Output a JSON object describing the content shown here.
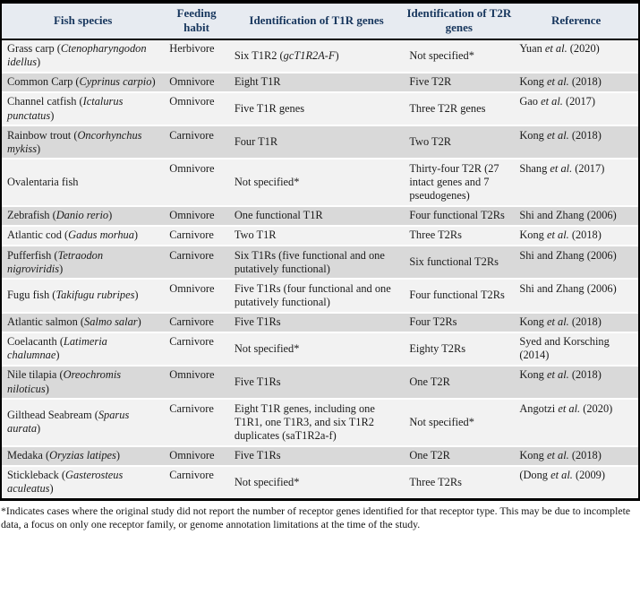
{
  "table": {
    "header": [
      "Fish species",
      "Feeding habit",
      "Identification of T1R genes",
      "Identification of T2R genes",
      "Reference"
    ],
    "rows": [
      {
        "species": "Grass carp (_Ctenopharyngodon idellus_)",
        "habit": "Herbivore",
        "t1r": "Six T1R2 (_gcT1R2A-F_)",
        "t2r": "Not specified*",
        "ref": "Yuan _et al._ (2020)"
      },
      {
        "species": "Common Carp (_Cyprinus carpio_)",
        "habit": "Omnivore",
        "t1r": "Eight T1R",
        "t2r": "Five T2R",
        "ref": "Kong _et al._ (2018)"
      },
      {
        "species": "Channel catfish (_Ictalurus punctatus_)",
        "habit": "Omnivore",
        "t1r": "Five T1R genes",
        "t2r": "Three T2R genes",
        "ref": "Gao _et al._ (2017)"
      },
      {
        "species": "Rainbow trout (_Oncorhynchus mykiss_)",
        "habit": "Carnivore",
        "t1r": "Four T1R",
        "t2r": "Two T2R",
        "ref": "Kong _et al._ (2018)"
      },
      {
        "species": "Ovalentaria fish",
        "habit": "Omnivore",
        "t1r": "Not specified*",
        "t2r": "Thirty-four T2R (27 intact genes and 7 pseudogenes)",
        "ref": "Shang _et al._ (2017)"
      },
      {
        "species": "Zebrafish (_Danio rerio_)",
        "habit": "Omnivore",
        "t1r": "One functional T1R",
        "t2r": "Four functional T2Rs",
        "ref": "Shi and Zhang (2006)"
      },
      {
        "species": "Atlantic cod (_Gadus morhua_)",
        "habit": "Carnivore",
        "t1r": "Two T1R",
        "t2r": "Three T2Rs",
        "ref": "Kong _et al._ (2018)"
      },
      {
        "species": "Pufferfish (_Tetraodon nigroviridis_)",
        "habit": "Carnivore",
        "t1r": "Six T1Rs (five functional and one putatively functional)",
        "t2r": "Six functional T2Rs",
        "ref": "Shi and Zhang (2006)"
      },
      {
        "species": "Fugu fish (_Takifugu rubripes_)",
        "habit": "Omnivore",
        "t1r": "Five T1Rs (four functional and one putatively functional)",
        "t2r": "Four functional T2Rs",
        "ref": "Shi and Zhang (2006)"
      },
      {
        "species": "Atlantic salmon (_Salmo salar_)",
        "habit": "Carnivore",
        "t1r": "Five T1Rs",
        "t2r": "Four T2Rs",
        "ref": "Kong _et al._ (2018)"
      },
      {
        "species": "Coelacanth (_Latimeria chalumnae_)",
        "habit": "Carnivore",
        "t1r": "Not specified*",
        "t2r": "Eighty T2Rs",
        "ref": "Syed and Korsching (2014)"
      },
      {
        "species": "Nile tilapia (_Oreochromis niloticus_)",
        "habit": "Omnivore",
        "t1r": "Five T1Rs",
        "t2r": "One T2R",
        "ref": "Kong _et al._ (2018)"
      },
      {
        "species": "Gilthead Seabream (_Sparus aurata_)",
        "habit": "Carnivore",
        "t1r": "Eight T1R genes, including one T1R1, one T1R3, and six T1R2 duplicates (saT1R2a-f)",
        "t2r": "Not specified*",
        "ref": "Angotzi _et al._ (2020)"
      },
      {
        "species": "Medaka (_Oryzias latipes_)",
        "habit": "Omnivore",
        "t1r": "Five T1Rs",
        "t2r": "One T2R",
        "ref": "Kong _et al._ (2018)"
      },
      {
        "species": "Stickleback (_Gasterosteus aculeatus_)",
        "habit": "Carnivore",
        "t1r": "Not specified*",
        "t2r": "Three T2Rs",
        "ref": "(Dong _et al._ (2009)"
      }
    ]
  },
  "footnote": "*Indicates cases where the original study did not report the number of receptor genes identified for that receptor type. This may be due to incomplete data, a focus on only one receptor family, or genome annotation limitations at the time of the study.",
  "colors": {
    "header_text": "#17365d",
    "header_bg": "#e7ebf1",
    "row_light": "#f2f2f2",
    "row_dark": "#d9d9d9",
    "border": "#000000"
  }
}
